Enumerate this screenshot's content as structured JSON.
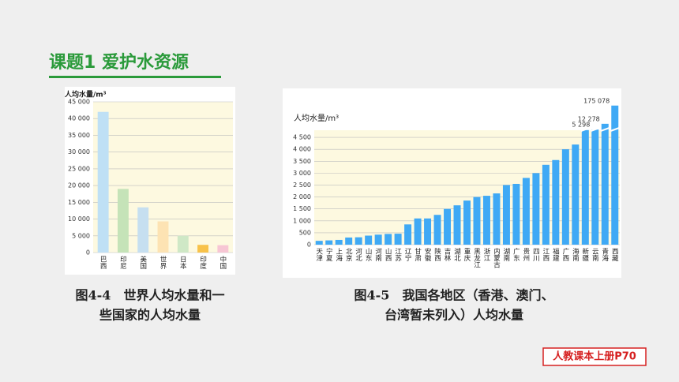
{
  "header": {
    "title": "课题1 爱护水资源"
  },
  "chart_data": [
    {
      "type": "bar",
      "ylabel": "人均水量/m³",
      "categories": [
        "巴西",
        "印尼",
        "美国",
        "世界",
        "日本",
        "印度",
        "中国"
      ],
      "values": [
        42000,
        19000,
        13500,
        9300,
        5000,
        2300,
        2200
      ],
      "colors": [
        "#bfe0f5",
        "#c5e3b8",
        "#c6dff0",
        "#fde3b3",
        "#cfe8c6",
        "#f8c24a",
        "#f7c6d4"
      ],
      "ylim": [
        0,
        45000
      ],
      "yticks": [
        0,
        {
          "value": 5000,
          "label": "5 000"
        },
        {
          "value": 10000,
          "label": "10 000"
        },
        {
          "value": 15000,
          "label": "15 000"
        },
        {
          "value": 20000,
          "label": "20 000"
        },
        {
          "value": 25000,
          "label": "25 000"
        },
        {
          "value": 30000,
          "label": "30 000"
        },
        {
          "value": 35000,
          "label": "35 000"
        },
        {
          "value": 40000,
          "label": "40 000"
        },
        {
          "value": 45000,
          "label": "45 000"
        }
      ],
      "grid": true,
      "caption": [
        "图4-4　世界人均水量和一",
        "些国家的人均水量"
      ]
    },
    {
      "type": "bar",
      "ylabel": "人均水量/m³",
      "categories": [
        "天津",
        "宁夏",
        "上海",
        "北京",
        "河北",
        "山东",
        "河南",
        "山西",
        "江苏",
        "辽宁",
        "甘肃",
        "安徽",
        "陕西",
        "吉林",
        "湖北",
        "重庆",
        "黑龙江",
        "浙江",
        "内蒙古",
        "湖南",
        "广东",
        "贵州",
        "四川",
        "江西",
        "福建",
        "广西",
        "海南",
        "新疆",
        "云南",
        "青海",
        "西藏"
      ],
      "values": [
        160,
        180,
        200,
        300,
        310,
        380,
        420,
        450,
        460,
        850,
        1100,
        1100,
        1250,
        1500,
        1650,
        1850,
        2000,
        2050,
        2150,
        2500,
        2550,
        2800,
        3000,
        3350,
        3550,
        4000,
        4200,
        4900,
        5298,
        12278,
        175078
      ],
      "value_labels": [
        null,
        null,
        null,
        null,
        null,
        null,
        null,
        null,
        null,
        null,
        null,
        null,
        null,
        null,
        null,
        null,
        null,
        null,
        null,
        null,
        null,
        null,
        null,
        null,
        null,
        null,
        null,
        null,
        "5 298",
        "12 278",
        "175 078"
      ],
      "color": "#3fa9f5",
      "ylim": [
        0,
        4800
      ],
      "yticks": [
        0,
        500,
        {
          "value": 1000,
          "label": "1 000"
        },
        {
          "value": 1500,
          "label": "1 500"
        },
        {
          "value": 2000,
          "label": "2 000"
        },
        {
          "value": 2500,
          "label": "2 500"
        },
        {
          "value": 3000,
          "label": "3 000"
        },
        {
          "value": 3500,
          "label": "3 500"
        },
        {
          "value": 4000,
          "label": "4 000"
        },
        {
          "value": 4500,
          "label": "4 500"
        }
      ],
      "grid": true,
      "caption": [
        "图4-5　我国各地区（香港、澳门、",
        "台湾暂未列入）人均水量"
      ]
    }
  ],
  "footer": {
    "badge": "人教课本上册P70"
  }
}
